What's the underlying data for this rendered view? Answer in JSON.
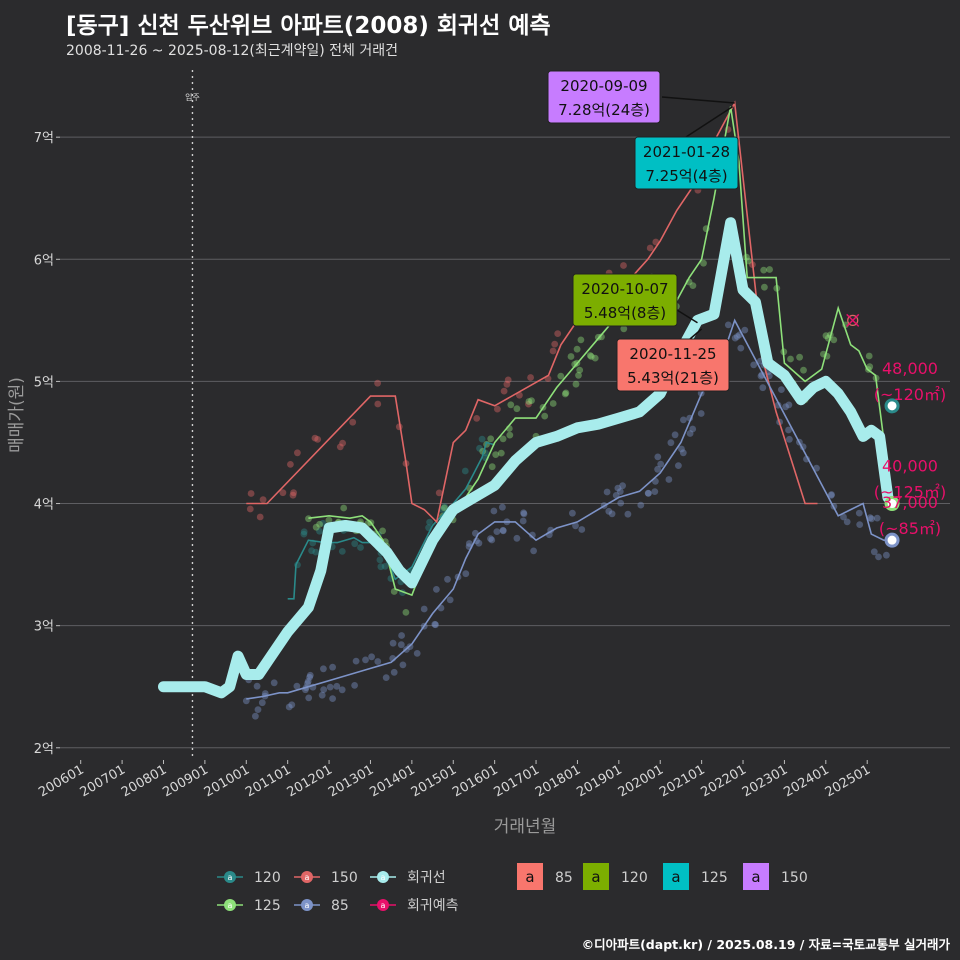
{
  "title": "[동구] 신천 두산위브 아파트(2008) 회귀선 예측",
  "subtitle": "2008-11-26 ~ 2025-08-12(최근계약일) 전체 거래건",
  "caption": "©디아파트(dapt.kr) / 2025.08.19 / 자료=국토교통부 실거래가",
  "colors": {
    "s120": "#2a8a8a",
    "s150": "#e06666",
    "s125": "#8ee07a",
    "s85": "#7d93c8",
    "regression": "#a8ecec",
    "prediction": "#e8106a",
    "label_85": "#f8766d",
    "label_120": "#7cae00",
    "label_125": "#00bfc4",
    "label_150": "#c77cff"
  },
  "chart_data": {
    "type": "line",
    "xlabel": "거래년월",
    "ylabel": "매매가(원)",
    "xlim": [
      2005.5,
      2027.0
    ],
    "ylim": [
      1.9,
      7.55
    ],
    "x_ticks": [
      {
        "x": 2006.0,
        "label": "200601"
      },
      {
        "x": 2007.0,
        "label": "200701"
      },
      {
        "x": 2008.0,
        "label": "200801"
      },
      {
        "x": 2009.0,
        "label": "200901"
      },
      {
        "x": 2010.0,
        "label": "201001"
      },
      {
        "x": 2011.0,
        "label": "201101"
      },
      {
        "x": 2012.0,
        "label": "201201"
      },
      {
        "x": 2013.0,
        "label": "201301"
      },
      {
        "x": 2014.0,
        "label": "201401"
      },
      {
        "x": 2015.0,
        "label": "201501"
      },
      {
        "x": 2016.0,
        "label": "201601"
      },
      {
        "x": 2017.0,
        "label": "201701"
      },
      {
        "x": 2018.0,
        "label": "201801"
      },
      {
        "x": 2019.0,
        "label": "201901"
      },
      {
        "x": 2020.0,
        "label": "202001"
      },
      {
        "x": 2021.0,
        "label": "202101"
      },
      {
        "x": 2022.0,
        "label": "202201"
      },
      {
        "x": 2023.0,
        "label": "202301"
      },
      {
        "x": 2024.0,
        "label": "202401"
      },
      {
        "x": 2025.0,
        "label": "202501"
      }
    ],
    "y_ticks": [
      {
        "y": 2,
        "label": "2억"
      },
      {
        "y": 3,
        "label": "3억"
      },
      {
        "y": 4,
        "label": "4억"
      },
      {
        "y": 5,
        "label": "5억"
      },
      {
        "y": 6,
        "label": "6억"
      },
      {
        "y": 7,
        "label": "7억"
      }
    ],
    "grid": true,
    "move_in": {
      "x": 2008.7,
      "label": "입주"
    },
    "series": [
      {
        "name": "120",
        "key": "s120",
        "x": [
          2011.0,
          2011.15,
          2011.2,
          2011.5,
          2011.9,
          2012.2,
          2012.6,
          2012.8,
          2013.1,
          2013.4,
          2013.6,
          2014.0,
          2014.5,
          2015.0,
          2015.3,
          2015.5,
          2015.7,
          2015.8,
          2016.0
        ],
        "y": [
          3.22,
          3.22,
          3.5,
          3.7,
          3.68,
          3.68,
          3.72,
          3.68,
          3.68,
          3.55,
          3.38,
          3.48,
          3.82,
          4.0,
          4.12,
          4.25,
          4.38,
          4.5,
          4.48
        ]
      },
      {
        "name": "150",
        "key": "s150",
        "x": [
          2010.0,
          2010.5,
          2013.0,
          2013.4,
          2013.6,
          2013.85,
          2014.0,
          2014.3,
          2014.6,
          2015.0,
          2015.3,
          2015.6,
          2016.0,
          2017.3,
          2017.6,
          2018.0,
          2018.4,
          2018.8,
          2019.3,
          2019.7,
          2020.0,
          2020.4,
          2020.8,
          2021.2,
          2021.8,
          2022.5,
          2022.8,
          2023.5,
          2023.8
        ],
        "y": [
          4.0,
          4.0,
          4.88,
          4.88,
          4.88,
          4.35,
          4.0,
          3.95,
          3.85,
          4.5,
          4.6,
          4.85,
          4.8,
          5.05,
          5.3,
          5.5,
          5.6,
          5.8,
          5.85,
          6.0,
          6.15,
          6.4,
          6.6,
          6.9,
          7.28,
          5.15,
          4.75,
          4.0,
          4.0
        ]
      },
      {
        "name": "125",
        "key": "s125",
        "x": [
          2011.5,
          2012.0,
          2012.5,
          2012.8,
          2013.0,
          2013.3,
          2013.6,
          2014.0,
          2014.4,
          2014.8,
          2015.2,
          2015.6,
          2016.0,
          2016.5,
          2017.0,
          2017.5,
          2018.0,
          2018.5,
          2019.0,
          2019.5,
          2020.0,
          2020.3,
          2020.7,
          2021.0,
          2021.3,
          2021.7,
          2021.9,
          2022.1,
          2022.8,
          2023.0,
          2023.5,
          2023.9,
          2024.3,
          2024.6,
          2024.8,
          2025.0,
          2025.2,
          2025.6
        ],
        "y": [
          3.88,
          3.9,
          3.88,
          3.9,
          3.85,
          3.7,
          3.3,
          3.25,
          3.6,
          3.9,
          4.0,
          4.2,
          4.5,
          4.7,
          4.7,
          4.95,
          5.15,
          5.35,
          5.55,
          5.65,
          5.75,
          5.6,
          5.85,
          6.0,
          6.5,
          7.25,
          6.8,
          5.85,
          5.85,
          5.15,
          5.0,
          5.1,
          5.6,
          5.3,
          5.25,
          5.1,
          5.05,
          4.0
        ]
      },
      {
        "name": "85",
        "key": "s85",
        "x": [
          2010.0,
          2010.4,
          2010.8,
          2011.0,
          2011.5,
          2012.0,
          2012.5,
          2013.0,
          2013.5,
          2014.0,
          2014.5,
          2015.0,
          2015.3,
          2015.6,
          2016.0,
          2016.5,
          2017.0,
          2017.5,
          2018.0,
          2018.5,
          2019.0,
          2019.5,
          2020.0,
          2020.5,
          2021.0,
          2021.5,
          2021.8,
          2024.3,
          2024.6,
          2024.9,
          2025.1,
          2025.4,
          2025.6
        ],
        "y": [
          2.4,
          2.42,
          2.45,
          2.45,
          2.5,
          2.55,
          2.6,
          2.65,
          2.7,
          2.85,
          3.1,
          3.3,
          3.55,
          3.75,
          3.85,
          3.85,
          3.7,
          3.8,
          3.85,
          3.95,
          4.05,
          4.1,
          4.25,
          4.5,
          4.9,
          5.2,
          5.5,
          3.9,
          3.95,
          4.0,
          3.75,
          3.7,
          3.7
        ]
      }
    ],
    "regression": {
      "name": "회귀선",
      "key": "regression",
      "x": [
        2008.0,
        2009.0,
        2009.4,
        2009.6,
        2009.8,
        2010.0,
        2010.3,
        2010.6,
        2011.0,
        2011.5,
        2011.8,
        2012.0,
        2012.4,
        2012.8,
        2013.1,
        2013.4,
        2013.7,
        2014.0,
        2014.5,
        2015.0,
        2015.5,
        2016.0,
        2016.5,
        2017.0,
        2017.5,
        2018.0,
        2018.5,
        2019.0,
        2019.5,
        2020.0,
        2020.5,
        2020.9,
        2021.3,
        2021.7,
        2022.0,
        2022.3,
        2022.6,
        2023.0,
        2023.4,
        2023.7,
        2024.0,
        2024.3,
        2024.6,
        2024.9,
        2025.1,
        2025.3,
        2025.5
      ],
      "y": [
        2.5,
        2.5,
        2.45,
        2.5,
        2.75,
        2.6,
        2.6,
        2.75,
        2.95,
        3.15,
        3.45,
        3.8,
        3.82,
        3.8,
        3.7,
        3.6,
        3.45,
        3.35,
        3.7,
        3.95,
        4.05,
        4.15,
        4.35,
        4.5,
        4.55,
        4.62,
        4.65,
        4.7,
        4.75,
        4.9,
        5.25,
        5.5,
        5.55,
        6.3,
        5.75,
        5.65,
        5.15,
        5.05,
        4.85,
        4.95,
        5.0,
        4.9,
        4.75,
        4.55,
        4.6,
        4.55,
        4.05
      ]
    },
    "predictions": [
      {
        "area": "120",
        "key": "s120",
        "x": 2025.6,
        "y": 4.8,
        "price": "48,000",
        "size": "(~120㎡)"
      },
      {
        "area": "125",
        "key": "s125",
        "x": 2025.6,
        "y": 4.0,
        "price": "40,000",
        "size": "(~125㎡)"
      },
      {
        "area": "85",
        "key": "s85",
        "x": 2025.6,
        "y": 3.7,
        "price": "37,000",
        "size": "(~85㎡)"
      }
    ],
    "prediction_marker": {
      "x": 2024.65,
      "y": 5.5
    },
    "annotations": [
      {
        "date": "2020-09-09",
        "value": "7.28억(24층)",
        "key": "label_150",
        "x": 2021.8,
        "y": 7.28
      },
      {
        "date": "2021-01-28",
        "value": "7.25억(4층)",
        "key": "label_125",
        "x": 2021.75,
        "y": 7.25
      },
      {
        "date": "2020-10-07",
        "value": "5.48억(8층)",
        "key": "label_120",
        "x": 2020.9,
        "y": 5.48
      },
      {
        "date": "2020-11-25",
        "value": "5.43억(21층)",
        "key": "label_85",
        "x": 2021.0,
        "y": 5.43
      }
    ],
    "legend": {
      "placement": "bottom",
      "items": [
        {
          "label": "120",
          "key": "s120"
        },
        {
          "label": "150",
          "key": "s150"
        },
        {
          "label": "회귀선",
          "key": "regression"
        },
        {
          "label": "125",
          "key": "s125"
        },
        {
          "label": "85",
          "key": "s85"
        },
        {
          "label": "회귀예측",
          "key": "prediction"
        }
      ],
      "label_items": [
        {
          "glyph": "a",
          "label": "85",
          "key": "label_85"
        },
        {
          "glyph": "a",
          "label": "120",
          "key": "label_120"
        },
        {
          "glyph": "a",
          "label": "125",
          "key": "label_125"
        },
        {
          "glyph": "a",
          "label": "150",
          "key": "label_150"
        }
      ]
    }
  }
}
